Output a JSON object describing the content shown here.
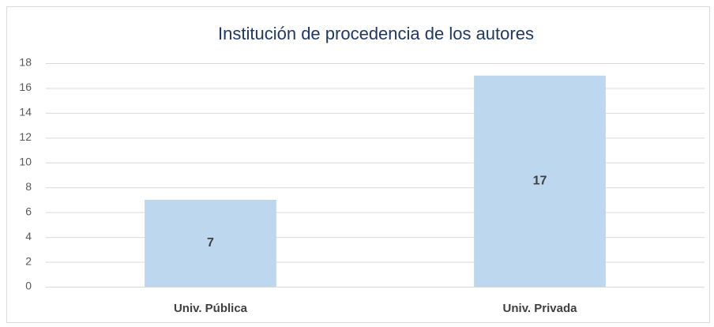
{
  "chart_data": {
    "type": "bar",
    "title": "Institución de procedencia de los autores",
    "categories": [
      "Univ. Pública",
      "Univ. Privada"
    ],
    "values": [
      7,
      17
    ],
    "color": "#bdd7ee",
    "ylim": [
      0,
      18
    ],
    "yticks": [
      0,
      2,
      4,
      6,
      8,
      10,
      12,
      14,
      16,
      18
    ],
    "grid": true,
    "data_labels": true
  }
}
